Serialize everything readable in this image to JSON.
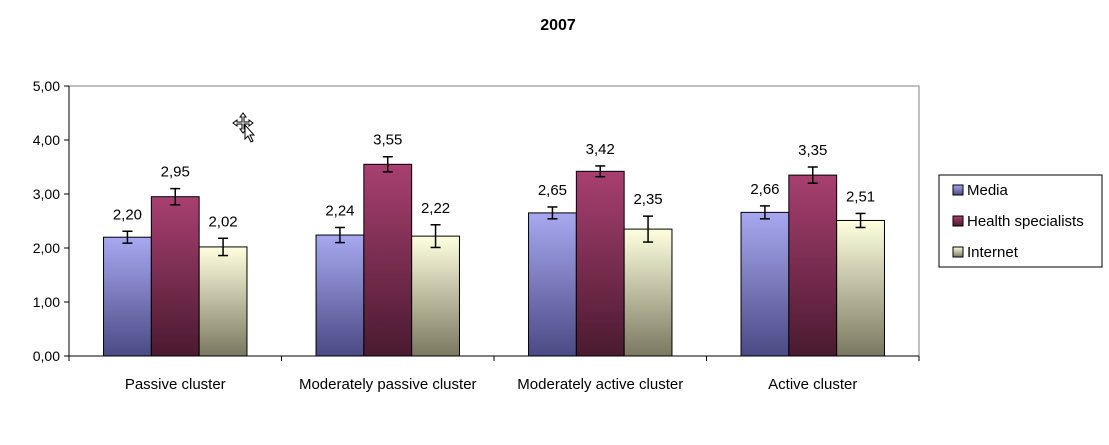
{
  "chart_data": {
    "type": "bar",
    "title": "2007",
    "xlabel": "",
    "ylabel": "",
    "ylim": [
      0,
      5
    ],
    "yticks": [
      "0,00",
      "1,00",
      "2,00",
      "3,00",
      "4,00",
      "5,00"
    ],
    "categories": [
      "Passive cluster",
      "Moderately passive cluster",
      "Moderately active cluster",
      "Active cluster"
    ],
    "series": [
      {
        "name": "Media",
        "values": [
          2.2,
          2.24,
          2.65,
          2.66
        ],
        "labels": [
          "2,20",
          "2,24",
          "2,65",
          "2,66"
        ],
        "errors": [
          0.11,
          0.14,
          0.11,
          0.12
        ],
        "color_top": "#a8a8f0",
        "color_bottom": "#4a4a85"
      },
      {
        "name": "Health specialists",
        "values": [
          2.95,
          3.55,
          3.42,
          3.35
        ],
        "labels": [
          "2,95",
          "3,55",
          "3,42",
          "3,35"
        ],
        "errors": [
          0.15,
          0.14,
          0.1,
          0.15
        ],
        "color_top": "#a84070",
        "color_bottom": "#4a1a30"
      },
      {
        "name": "Internet",
        "values": [
          2.02,
          2.22,
          2.35,
          2.51
        ],
        "labels": [
          "2,02",
          "2,22",
          "2,35",
          "2,51"
        ],
        "errors": [
          0.16,
          0.21,
          0.24,
          0.13
        ],
        "color_top": "#ffffe0",
        "color_bottom": "#7a7860"
      }
    ],
    "grid": false,
    "error_bars": true,
    "legend_position": "right",
    "plot_background": "#ffffff"
  }
}
